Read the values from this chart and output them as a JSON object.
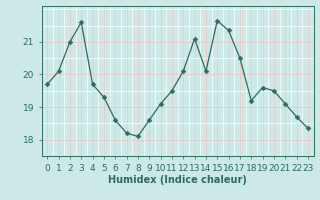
{
  "x": [
    0,
    1,
    2,
    3,
    4,
    5,
    6,
    7,
    8,
    9,
    10,
    11,
    12,
    13,
    14,
    15,
    16,
    17,
    18,
    19,
    20,
    21,
    22,
    23
  ],
  "y": [
    19.7,
    20.1,
    21.0,
    21.6,
    19.7,
    19.3,
    18.6,
    18.2,
    18.1,
    18.6,
    19.1,
    19.5,
    20.1,
    21.1,
    20.1,
    21.65,
    21.35,
    20.5,
    19.2,
    19.6,
    19.5,
    19.1,
    18.7,
    18.35
  ],
  "line_color": "#2e6b5e",
  "marker": "D",
  "marker_size": 2.5,
  "bg_color": "#cce9e8",
  "grid_color_major": "#e8c8c8",
  "grid_color_minor": "#ffffff",
  "axis_color": "#2e6b5e",
  "xlabel": "Humidex (Indice chaleur)",
  "xlabel_fontsize": 7,
  "tick_fontsize": 6.5,
  "ytick_labels": [
    18,
    19,
    20,
    21
  ],
  "ylim": [
    17.6,
    22.1
  ],
  "xlim": [
    -0.5,
    23.5
  ]
}
